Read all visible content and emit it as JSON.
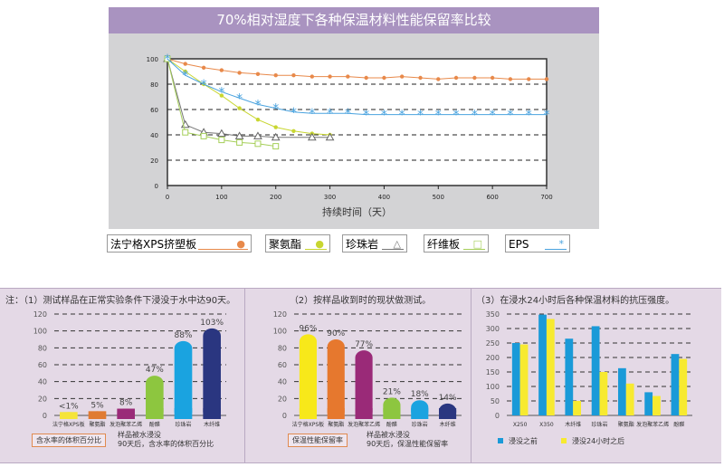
{
  "chart_data": [
    {
      "type": "line",
      "title": "70%相对湿度下各种保温材料性能保留率比较",
      "xlabel": "持续时间（天）",
      "ylabel": "",
      "xlim": [
        0,
        700
      ],
      "ylim": [
        0,
        100
      ],
      "xticks": [
        0,
        100,
        200,
        300,
        400,
        500,
        600,
        700
      ],
      "yticks": [
        0,
        20,
        40,
        60,
        80,
        100
      ],
      "grid": "dashed at 20,40,60,80",
      "series": [
        {
          "name": "法宁格XPS挤塑板",
          "marker": "●",
          "color": "#e8894a",
          "x": [
            0,
            33,
            67,
            100,
            133,
            167,
            200,
            233,
            267,
            300,
            333,
            367,
            400,
            433,
            467,
            500,
            533,
            567,
            600,
            633,
            667,
            700
          ],
          "y": [
            100,
            96,
            93,
            91,
            89,
            88,
            87,
            87,
            86,
            86,
            86,
            85,
            85,
            86,
            85,
            84,
            85,
            85,
            85,
            84,
            84,
            84
          ]
        },
        {
          "name": "聚氨酯",
          "marker": "●",
          "color": "#c8d630",
          "x": [
            0,
            33,
            67,
            100,
            133,
            167,
            200,
            233,
            267,
            300
          ],
          "y": [
            100,
            90,
            80,
            71,
            61,
            52,
            46,
            43,
            41,
            40
          ]
        },
        {
          "name": "珍珠岩",
          "marker": "△",
          "color": "#777777",
          "x": [
            0,
            33,
            67,
            100,
            133,
            167,
            200,
            267,
            300
          ],
          "y": [
            100,
            48,
            42,
            41,
            39,
            39,
            38,
            38,
            38
          ]
        },
        {
          "name": "纤维板",
          "marker": "□",
          "color": "#a6cf5a",
          "x": [
            0,
            33,
            67,
            100,
            133,
            167,
            200
          ],
          "y": [
            100,
            42,
            39,
            36,
            34,
            33,
            31
          ]
        },
        {
          "name": "EPS",
          "marker": "*",
          "color": "#4aa3df",
          "x": [
            0,
            33,
            67,
            100,
            133,
            167,
            200,
            233,
            267,
            300,
            333,
            367,
            400,
            433,
            467,
            500,
            533,
            567,
            600,
            633,
            667,
            700
          ],
          "y": [
            100,
            87,
            80,
            74,
            69,
            64,
            61,
            58,
            57,
            57,
            57,
            56,
            56,
            56,
            56,
            56,
            56,
            56,
            56,
            56,
            56,
            56
          ]
        }
      ]
    },
    {
      "type": "bar",
      "title": "注：（1）测试样品在正常实验条件下浸没于水中达90天。",
      "ylim": [
        0,
        120
      ],
      "yticks": [
        0,
        20,
        40,
        60,
        80,
        100,
        120
      ],
      "categories": [
        "法宁格XPS板",
        "聚氨酯",
        "发泡聚苯乙烯",
        "酚醛",
        "珍珠岩",
        "木纤维"
      ],
      "values": [
        1,
        5,
        8,
        47,
        88,
        103
      ],
      "labels": [
        "<1%",
        "5%",
        "8%",
        "47%",
        "88%",
        "103%"
      ],
      "colors": [
        "#f5e43a",
        "#e07b32",
        "#9a2a78",
        "#8dc63f",
        "#1aa3e0",
        "#2a3680"
      ],
      "box": "含水率的体积百分比",
      "note": "样品被水浸没\n90天后，含水率的体积百分比"
    },
    {
      "type": "bar",
      "title": "（2）按样品收到时的现状做测试。",
      "ylim": [
        0,
        120
      ],
      "yticks": [
        0,
        20,
        40,
        60,
        80,
        100,
        120
      ],
      "categories": [
        "法宁格XPS板",
        "聚氨酯",
        "发泡聚苯乙烯",
        "酚醛",
        "珍珠岩",
        "木纤维"
      ],
      "values": [
        96,
        90,
        77,
        21,
        18,
        14
      ],
      "labels": [
        "96%",
        "90%",
        "77%",
        "21%",
        "18%",
        "14%"
      ],
      "colors": [
        "#f7e81a",
        "#e6782e",
        "#9a2a78",
        "#8dc63f",
        "#1aa3e0",
        "#2a3680"
      ],
      "box": "保温性能保留率",
      "note": "样品被水浸没\n90天后，保温性能保留率"
    },
    {
      "type": "bar",
      "title": "（3）在浸水24小时后各种保温材料的抗压强度。",
      "ylim": [
        0,
        350
      ],
      "yticks": [
        0,
        50,
        100,
        150,
        200,
        250,
        300,
        350
      ],
      "categories": [
        "X250",
        "X350",
        "木纤维",
        "珍珠岩",
        "聚氨酯",
        "发泡聚苯乙烯",
        "酚醛"
      ],
      "series": [
        {
          "name": "浸没之前",
          "color": "#1a9ad8",
          "values": [
            250,
            348,
            265,
            308,
            163,
            80,
            212
          ]
        },
        {
          "name": "浸没24小时之后",
          "color": "#f7ea30",
          "values": [
            245,
            333,
            50,
            150,
            110,
            67,
            195
          ]
        }
      ]
    }
  ]
}
